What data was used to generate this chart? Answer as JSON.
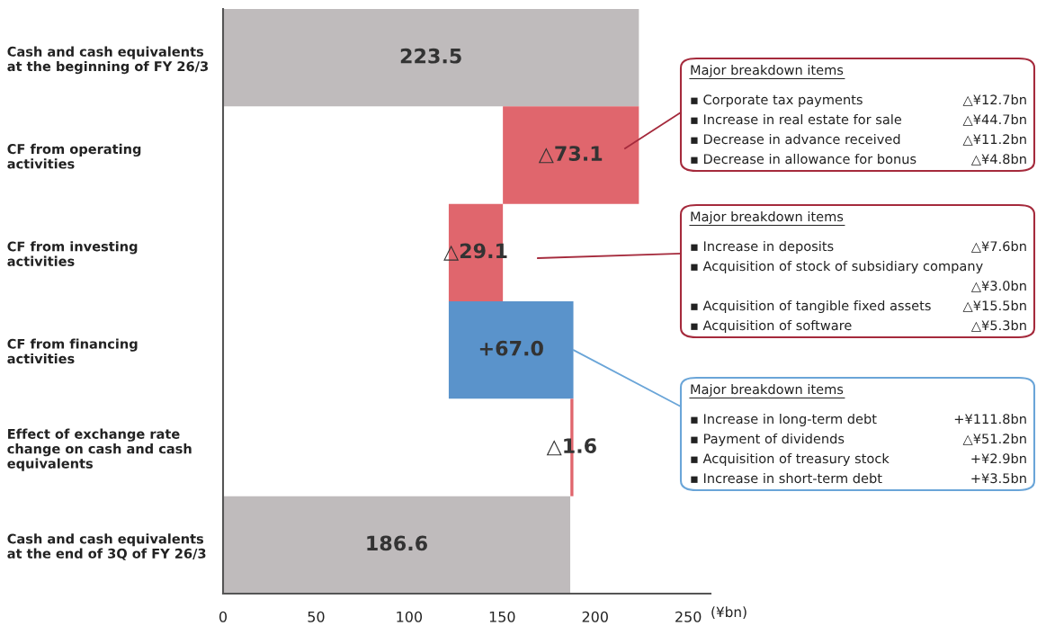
{
  "chart_data": {
    "type": "bar",
    "orientation": "horizontal",
    "xlabel": "(¥bn)",
    "categories": [
      "Cash and cash equivalents\nat the beginning of FY 26/3",
      "CF from operating\nactivities",
      "CF from investing\nactivities",
      "CF from financing\nactivities",
      "Effect of exchange rate\nchange on cash and cash\nequivalents",
      "Cash and cash equivalents\nat the end of 3Q of FY 26/3"
    ],
    "values": [
      223.5,
      -73.1,
      -29.1,
      67.0,
      -1.6,
      186.6
    ],
    "base": [
      0,
      223.5,
      150.4,
      121.3,
      188.3,
      0
    ],
    "colors": [
      "#bfbbbc",
      "#e0666d",
      "#e0666d",
      "#5a93cb",
      "#e0666d",
      "#bfbbbc"
    ],
    "value_labels": [
      "223.5",
      "△73.1",
      "△29.1",
      "+67.0",
      "△1.6",
      "186.6"
    ],
    "xlim": [
      0,
      262
    ],
    "xticks": [
      0,
      50,
      100,
      150,
      200,
      250
    ],
    "grid": false,
    "legend": false,
    "annotations": [
      "Major breakdown items",
      "▪ Corporate tax payments",
      "△¥12.7bn",
      "▪ Increase in real estate for sale",
      "△¥44.7bn",
      "▪ Decrease in advance received",
      "△¥11.2bn",
      "▪ Decrease in allowance for bonus",
      "△¥4.8bn",
      "Major breakdown items",
      "▪ Increase in deposits",
      "△¥7.6bn",
      "▪ Acquisition of stock of subsidiary company",
      "△¥3.0bn",
      "▪ Acquisition of tangible fixed assets",
      "△¥15.5bn",
      "▪ Acquisition of software",
      "△¥5.3bn",
      {
        "text": "Major breakdown items",
        "x": 188.3,
        "y": "CF from financing\nactivities"
      },
      "▪ Increase in long-term debt",
      "+¥111.8bn",
      "▪ Payment of dividends",
      "△¥51.2bn",
      "▪ Acquisition of treasury stock",
      "+¥2.9bn",
      "▪ Increase in short-term debt",
      "+¥3.5bn"
    ]
  }
}
